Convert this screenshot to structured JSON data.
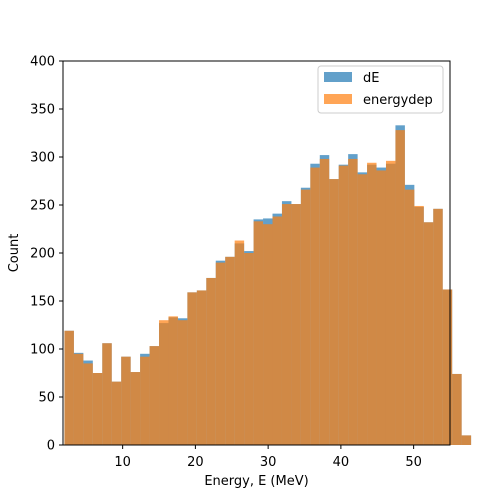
{
  "chart_data": {
    "type": "bar",
    "subtype": "overlaid-histogram",
    "title": "",
    "xlabel": "Energy, E (MeV)",
    "ylabel": "Count",
    "xlim": [
      1.8,
      55.0
    ],
    "ylim": [
      0,
      400
    ],
    "x_ticks": [
      10,
      20,
      30,
      40,
      50
    ],
    "y_ticks": [
      0,
      50,
      100,
      150,
      200,
      250,
      300,
      350,
      400
    ],
    "bins": {
      "start": 2.0,
      "width": 1.3
    },
    "legend": {
      "position": "top-right"
    },
    "series": [
      {
        "name": "dE",
        "color": "#1f77b4",
        "opacity": 0.7,
        "values": [
          119,
          96,
          88,
          75,
          106,
          66,
          92,
          76,
          95,
          103,
          127,
          133,
          132,
          159,
          161,
          174,
          192,
          196,
          210,
          202,
          235,
          236,
          241,
          254,
          251,
          268,
          293,
          302,
          277,
          292,
          303,
          284,
          292,
          289,
          293,
          333,
          271,
          248,
          232,
          246,
          162,
          74,
          10
        ]
      },
      {
        "name": "energydep",
        "color": "#ff7f0e",
        "opacity": 0.7,
        "values": [
          119,
          95,
          85,
          75,
          106,
          66,
          92,
          76,
          92,
          103,
          130,
          134,
          130,
          159,
          161,
          174,
          190,
          196,
          213,
          200,
          233,
          230,
          238,
          251,
          251,
          266,
          289,
          298,
          277,
          291,
          298,
          282,
          294,
          286,
          296,
          328,
          266,
          249,
          232,
          246,
          162,
          74,
          10
        ]
      }
    ]
  }
}
